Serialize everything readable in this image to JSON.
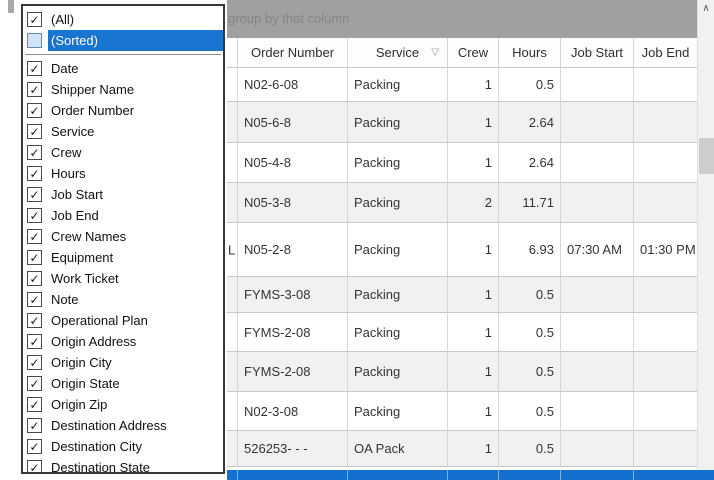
{
  "icons": {
    "check": "✓",
    "chevron_up": "∧",
    "filter_triangle": "▽"
  },
  "colors": {
    "highlight_blue": "#1975d2",
    "selected_row_blue": "#1470cf",
    "group_bar_bg": "#a0a0a0",
    "group_bar_text": "#858585",
    "alt_row_bg": "#f1f1f1",
    "grid_line": "#d6d6d6",
    "row_line": "#c9c9c9",
    "scrollbar_thumb": "#cdcdcd",
    "sorted_checkbox_bg": "#cde3f6"
  },
  "group_bar": {
    "visible_text": "group by that column"
  },
  "column_filter_dropdown": {
    "items": [
      {
        "label": "(All)",
        "checked": true
      },
      {
        "label": "(Sorted)",
        "checked": false,
        "highlighted": true,
        "separator_after": true
      },
      {
        "label": "Date",
        "checked": true
      },
      {
        "label": "Shipper Name",
        "checked": true
      },
      {
        "label": "Order Number",
        "checked": true
      },
      {
        "label": "Service",
        "checked": true
      },
      {
        "label": "Crew",
        "checked": true
      },
      {
        "label": "Hours",
        "checked": true
      },
      {
        "label": "Job Start",
        "checked": true
      },
      {
        "label": "Job End",
        "checked": true
      },
      {
        "label": "Crew Names",
        "checked": true
      },
      {
        "label": "Equipment",
        "checked": true
      },
      {
        "label": "Work Ticket",
        "checked": true
      },
      {
        "label": "Note",
        "checked": true
      },
      {
        "label": "Operational Plan",
        "checked": true
      },
      {
        "label": "Origin Address",
        "checked": true
      },
      {
        "label": "Origin City",
        "checked": true
      },
      {
        "label": "Origin State",
        "checked": true
      },
      {
        "label": "Origin Zip",
        "checked": true
      },
      {
        "label": "Destination Address",
        "checked": true
      },
      {
        "label": "Destination City",
        "checked": true
      },
      {
        "label": "Destination State",
        "checked": true
      }
    ]
  },
  "table": {
    "columns": [
      {
        "label": "Order Number",
        "align": "left",
        "filter_icon": false
      },
      {
        "label": "Service",
        "align": "left",
        "filter_icon": true
      },
      {
        "label": "Crew",
        "align": "right",
        "filter_icon": false
      },
      {
        "label": "Hours",
        "align": "right",
        "filter_icon": false
      },
      {
        "label": "Job Start",
        "align": "left",
        "filter_icon": false
      },
      {
        "label": "Job End",
        "align": "left",
        "filter_icon": false
      }
    ],
    "rows": [
      {
        "order_number": "N02-6-08",
        "service": "Packing",
        "crew": "1",
        "hours": "0.5",
        "job_start": "",
        "job_end": ""
      },
      {
        "order_number": "N05-6-8",
        "service": "Packing",
        "crew": "1",
        "hours": "2.64",
        "job_start": "",
        "job_end": ""
      },
      {
        "order_number": "N05-4-8",
        "service": "Packing",
        "crew": "1",
        "hours": "2.64",
        "job_start": "",
        "job_end": ""
      },
      {
        "order_number": "N05-3-8",
        "service": "Packing",
        "crew": "2",
        "hours": "11.71",
        "job_start": "",
        "job_end": ""
      },
      {
        "order_number": "N05-2-8",
        "service": "Packing",
        "crew": "1",
        "hours": "6.93",
        "job_start": "07:30 AM",
        "job_end": "01:30 PM",
        "clipped_left_text": "L"
      },
      {
        "order_number": "FYMS-3-08",
        "service": "Packing",
        "crew": "1",
        "hours": "0.5",
        "job_start": "",
        "job_end": ""
      },
      {
        "order_number": "FYMS-2-08",
        "service": "Packing",
        "crew": "1",
        "hours": "0.5",
        "job_start": "",
        "job_end": ""
      },
      {
        "order_number": "FYMS-2-08",
        "service": "Packing",
        "crew": "1",
        "hours": "0.5",
        "job_start": "",
        "job_end": ""
      },
      {
        "order_number": "N02-3-08",
        "service": "Packing",
        "crew": "1",
        "hours": "0.5",
        "job_start": "",
        "job_end": ""
      },
      {
        "order_number": "526253- - -",
        "service": "OA Pack",
        "crew": "1",
        "hours": "0.5",
        "job_start": "",
        "job_end": ""
      }
    ],
    "selected_empty_row": true
  }
}
